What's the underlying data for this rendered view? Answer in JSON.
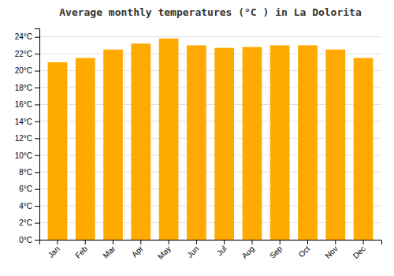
{
  "chart_data": {
    "type": "bar",
    "title": "Average monthly temperatures (°C ) in La Dolorita",
    "categories": [
      "Jan",
      "Feb",
      "Mar",
      "Apr",
      "May",
      "Jun",
      "Jul",
      "Aug",
      "Sep",
      "Oct",
      "Nov",
      "Dec"
    ],
    "values": [
      21.0,
      21.5,
      22.5,
      23.2,
      23.8,
      23.0,
      22.7,
      22.8,
      23.0,
      23.0,
      22.5,
      21.5
    ],
    "color": "#FFAA00",
    "ylim": [
      0,
      25
    ],
    "yticks": [
      {
        "value": 0,
        "label": "0°C"
      },
      {
        "value": 2,
        "label": "2°C"
      },
      {
        "value": 4,
        "label": "4°C"
      },
      {
        "value": 6,
        "label": "6°C"
      },
      {
        "value": 8,
        "label": "8°C"
      },
      {
        "value": 10,
        "label": "10°C"
      },
      {
        "value": 12,
        "label": "12°C"
      },
      {
        "value": 14,
        "label": "14°C"
      },
      {
        "value": 16,
        "label": "16°C"
      },
      {
        "value": 18,
        "label": "18°C"
      },
      {
        "value": 20,
        "label": "20°C"
      },
      {
        "value": 22,
        "label": "22°C"
      },
      {
        "value": 24,
        "label": "24°C"
      }
    ],
    "grid": true
  }
}
